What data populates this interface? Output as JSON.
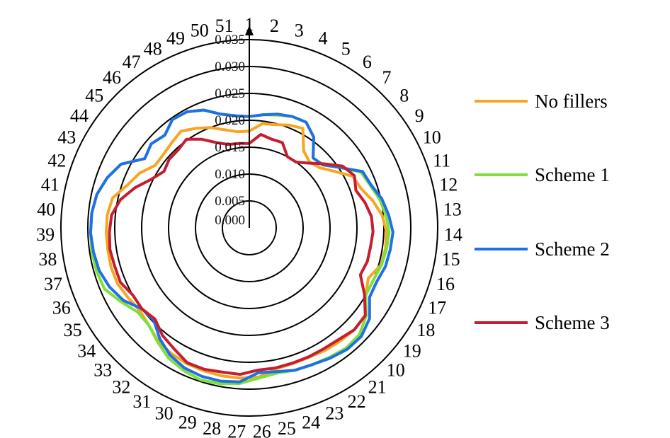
{
  "chart_data": {
    "type": "radar",
    "title": "",
    "radial_ticks": [
      "0.000",
      "0.005",
      "0.010",
      "0.015",
      "0.020",
      "0.025",
      "0.030",
      "0.035"
    ],
    "rlim": [
      0,
      0.035
    ],
    "angular_labels": [
      "1",
      "2",
      "3",
      "4",
      "5",
      "6",
      "7",
      "8",
      "9",
      "10",
      "11",
      "12",
      "13",
      "14",
      "15",
      "16",
      "17",
      "18",
      "19",
      "10",
      "21",
      "22",
      "23",
      "24",
      "25",
      "26",
      "27",
      "28",
      "29",
      "30",
      "31",
      "32",
      "33",
      "34",
      "35",
      "36",
      "37",
      "38",
      "39",
      "40",
      "41",
      "42",
      "43",
      "44",
      "45",
      "46",
      "47",
      "48",
      "49",
      "50",
      "51"
    ],
    "legend_position": "right",
    "series": [
      {
        "name": "No fillers",
        "color": "#F5A623",
        "values": [
          0.018,
          0.0195,
          0.0198,
          0.0205,
          0.021,
          0.0175,
          0.0166,
          0.0172,
          0.019,
          0.0215,
          0.022,
          0.0235,
          0.0248,
          0.0255,
          0.0256,
          0.0254,
          0.024,
          0.025,
          0.027,
          0.0272,
          0.027,
          0.0268,
          0.0265,
          0.0265,
          0.0267,
          0.0278,
          0.028,
          0.028,
          0.0279,
          0.0278,
          0.0275,
          0.027,
          0.026,
          0.0255,
          0.026,
          0.0266,
          0.0267,
          0.0266,
          0.0266,
          0.0265,
          0.026,
          0.024,
          0.0228,
          0.021,
          0.021,
          0.0214,
          0.022,
          0.021,
          0.02,
          0.0188,
          0.018
        ]
      },
      {
        "name": "Scheme 1",
        "color": "#7EE03A",
        "values": [
          0.0207,
          0.0212,
          0.0216,
          0.0222,
          0.0223,
          0.0207,
          0.0176,
          0.018,
          0.0203,
          0.0232,
          0.0238,
          0.0248,
          0.0255,
          0.026,
          0.0258,
          0.0255,
          0.025,
          0.025,
          0.0272,
          0.0285,
          0.0287,
          0.0283,
          0.028,
          0.0278,
          0.0275,
          0.028,
          0.029,
          0.0295,
          0.0297,
          0.0292,
          0.0285,
          0.0272,
          0.026,
          0.026,
          0.0275,
          0.0292,
          0.0295,
          0.0296,
          0.0295,
          0.0294,
          0.029,
          0.028,
          0.0266,
          0.0233,
          0.024,
          0.0233,
          0.0247,
          0.0245,
          0.0235,
          0.0218,
          0.021
        ]
      },
      {
        "name": "Scheme 2",
        "color": "#1F6FE5",
        "values": [
          0.0207,
          0.0212,
          0.0218,
          0.0222,
          0.0223,
          0.0207,
          0.0176,
          0.018,
          0.0203,
          0.0235,
          0.024,
          0.0252,
          0.026,
          0.0267,
          0.0265,
          0.0263,
          0.0257,
          0.0258,
          0.028,
          0.029,
          0.029,
          0.0285,
          0.028,
          0.0278,
          0.0272,
          0.027,
          0.0287,
          0.029,
          0.029,
          0.0287,
          0.0279,
          0.0265,
          0.0247,
          0.025,
          0.027,
          0.0282,
          0.029,
          0.0293,
          0.0295,
          0.0294,
          0.029,
          0.028,
          0.0266,
          0.0233,
          0.024,
          0.0233,
          0.0247,
          0.0245,
          0.0235,
          0.0218,
          0.021
        ]
      },
      {
        "name": "Scheme 3",
        "color": "#C41E30",
        "values": [
          0.0157,
          0.0175,
          0.017,
          0.017,
          0.015,
          0.015,
          0.0163,
          0.0183,
          0.0208,
          0.0218,
          0.021,
          0.022,
          0.0228,
          0.023,
          0.0228,
          0.0228,
          0.0224,
          0.0247,
          0.027,
          0.0272,
          0.0266,
          0.0264,
          0.0264,
          0.0264,
          0.0265,
          0.0265,
          0.0273,
          0.0273,
          0.0276,
          0.0276,
          0.0265,
          0.0257,
          0.0244,
          0.025,
          0.025,
          0.026,
          0.026,
          0.0262,
          0.026,
          0.0257,
          0.0245,
          0.0225,
          0.0203,
          0.019,
          0.0196,
          0.0196,
          0.0202,
          0.0187,
          0.017,
          0.016,
          0.0158
        ]
      }
    ]
  }
}
